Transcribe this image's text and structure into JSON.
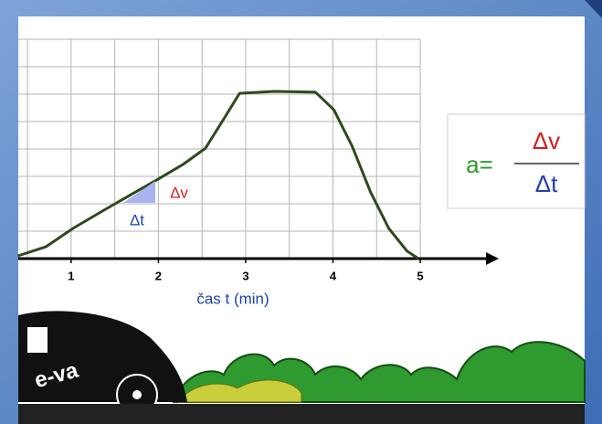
{
  "chart_data": {
    "type": "line",
    "x_label": "čas t (min)",
    "x": [
      0.39,
      0.71,
      1.02,
      1.34,
      1.65,
      1.96,
      2.28,
      2.54,
      2.75,
      2.93,
      3.33,
      3.8,
      4.01,
      4.22,
      4.43,
      4.64,
      4.85,
      4.98
    ],
    "series": [
      {
        "color": "#2d4a1c",
        "values": [
          0.1,
          0.43,
          1.1,
          1.7,
          2.27,
          2.83,
          3.43,
          4.03,
          5.1,
          6.03,
          6.1,
          6.07,
          5.43,
          4.1,
          2.43,
          1.1,
          0.27,
          0
        ]
      }
    ],
    "xlim": [
      0.3,
      5.9
    ],
    "ylim": [
      0,
      8
    ],
    "xticks": [
      1,
      2,
      3,
      4,
      5
    ],
    "grid": true,
    "grid_x": [
      0.5,
      1,
      1.5,
      2,
      2.5,
      3,
      3.5,
      4,
      4.5,
      5
    ],
    "grid_y": [
      1,
      2,
      3,
      4,
      5,
      6,
      7,
      8
    ],
    "annotations": {
      "delta_v": "Δv",
      "delta_t": "Δt"
    },
    "formula": {
      "lhs": "a=",
      "numerator": "Δv",
      "denominator": "Δt"
    },
    "logo": "e-va"
  }
}
